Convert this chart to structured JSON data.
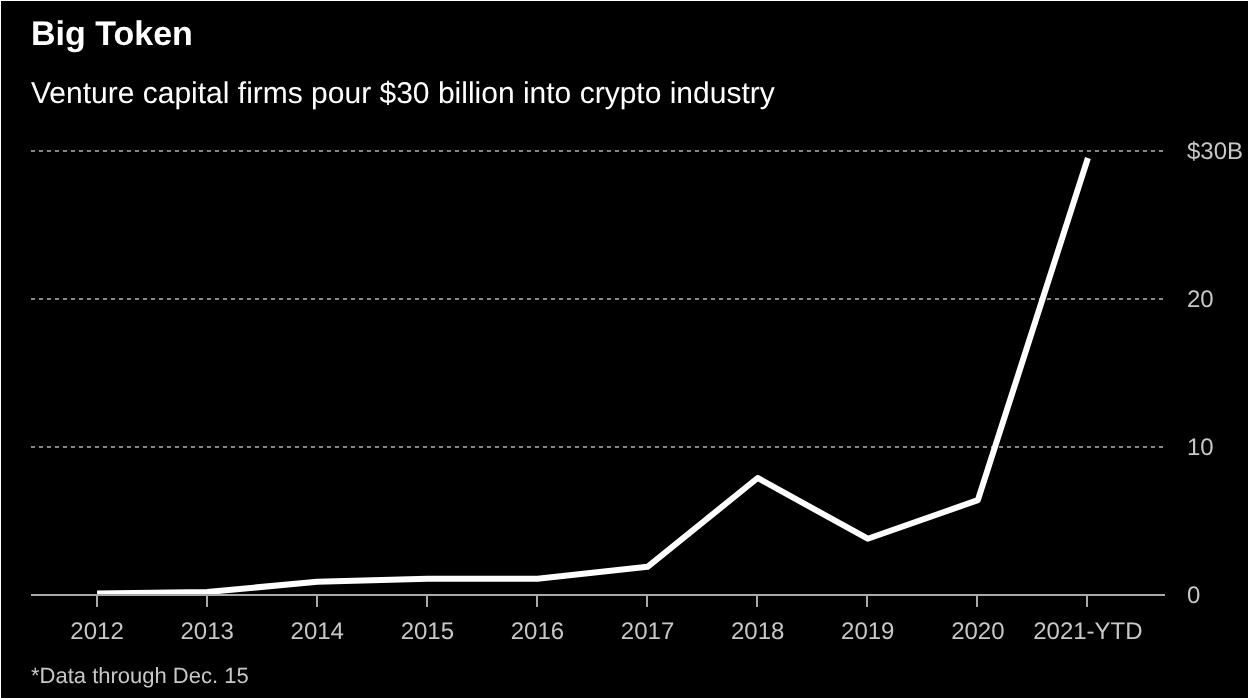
{
  "chart_data": {
    "type": "line",
    "title": "Big Token",
    "subtitle": "Venture capital firms pour $30 billion into crypto industry",
    "categories": [
      "2012",
      "2013",
      "2014",
      "2015",
      "2016",
      "2017",
      "2018",
      "2019",
      "2020",
      "2021-YTD"
    ],
    "series": [
      {
        "color": "#ffffff",
        "values": [
          0.1,
          0.2,
          0.9,
          1.1,
          1.1,
          1.9,
          7.9,
          3.8,
          6.4,
          29.5
        ]
      }
    ],
    "ylim": [
      0,
      32
    ],
    "yticks": [
      0,
      10,
      20,
      {
        "value": 30,
        "label": "$30B"
      }
    ],
    "grid": "y",
    "marker": "none",
    "line_style": "solid",
    "annotations": [
      "*Data through Dec. 15"
    ]
  }
}
